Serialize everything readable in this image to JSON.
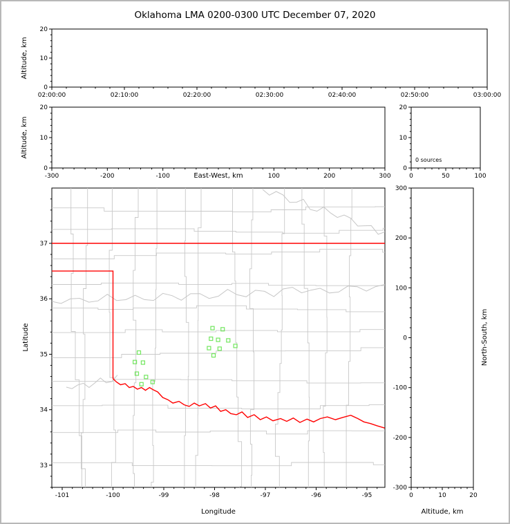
{
  "title": "Oklahoma LMA 0200-0300 UTC December 07, 2020",
  "panels": {
    "time_height": {
      "ylabel": "Altitude, km",
      "yticks": [
        "20",
        "10",
        "0"
      ],
      "xticks": [
        "02:00:00",
        "02:10:00",
        "02:20:00",
        "02:30:00",
        "02:40:00",
        "02:50:00",
        "03:00:00"
      ]
    },
    "ew_height": {
      "ylabel": "Altitude, km",
      "xlabel": "East-West, km",
      "yticks": [
        "20",
        "10",
        "0"
      ],
      "xticks": [
        "-300",
        "-200",
        "-100",
        "100",
        "200",
        "300"
      ]
    },
    "histogram": {
      "annotation": "0 sources",
      "yticks": [
        "20",
        "10",
        "0"
      ],
      "xticks": [
        "0",
        "50",
        "100"
      ]
    },
    "map": {
      "ylabel": "Latitude",
      "xlabel": "Longitude",
      "yticks": [
        "37",
        "36",
        "35",
        "34",
        "33"
      ],
      "xticks": [
        "-101",
        "-100",
        "-99",
        "-98",
        "-97",
        "-96",
        "-95"
      ]
    },
    "ns_height": {
      "ylabel": "North-South, km",
      "xlabel": "Altitude, km",
      "yticks": [
        "300",
        "200",
        "100",
        "0",
        "-100",
        "-200",
        "-300"
      ],
      "xticks": [
        "0",
        "10",
        "20"
      ]
    }
  },
  "chart_data": {
    "type": "scatter",
    "title": "Oklahoma LMA 0200-0300 UTC December 07, 2020",
    "source_count": 0,
    "panels": [
      {
        "id": "altitude_vs_time",
        "type": "scatter",
        "x_range": [
          "02:00:00",
          "03:00:00"
        ],
        "y_axis": "Altitude, km",
        "y_range": [
          0,
          20
        ],
        "points": []
      },
      {
        "id": "altitude_vs_east_west",
        "type": "scatter",
        "x_axis": "East-West, km",
        "x_range": [
          -300,
          300
        ],
        "y_axis": "Altitude, km",
        "y_range": [
          0,
          20
        ],
        "points": []
      },
      {
        "id": "source_count_histogram",
        "type": "histogram",
        "x_range": [
          0,
          100
        ],
        "y_range": [
          0,
          20
        ],
        "annotation": "0 sources",
        "points": []
      },
      {
        "id": "plan_view_map",
        "type": "map-scatter",
        "x_axis": "Longitude",
        "x_range": [
          -101.2,
          -94.65
        ],
        "y_axis": "Latitude",
        "y_range": [
          32.6,
          38.0
        ]
      },
      {
        "id": "north_south_vs_altitude",
        "type": "scatter",
        "x_axis": "Altitude, km",
        "x_range": [
          0,
          20
        ],
        "y_axis": "North-South, km",
        "y_range": [
          -300,
          300
        ],
        "points": []
      }
    ],
    "county_lines_color": "#c8c8c8",
    "stations": {
      "marker": "open-square",
      "color": "#72e65e",
      "points": [
        [
          -99.49,
          35.03
        ],
        [
          -99.57,
          34.86
        ],
        [
          -99.41,
          34.85
        ],
        [
          -99.53,
          34.65
        ],
        [
          -99.35,
          34.59
        ],
        [
          -99.22,
          34.5
        ],
        [
          -99.44,
          34.46
        ],
        [
          -98.04,
          35.47
        ],
        [
          -97.84,
          35.45
        ],
        [
          -98.07,
          35.28
        ],
        [
          -97.93,
          35.26
        ],
        [
          -97.73,
          35.25
        ],
        [
          -98.11,
          35.11
        ],
        [
          -97.9,
          35.1
        ],
        [
          -97.59,
          35.15
        ],
        [
          -98.02,
          34.98
        ]
      ]
    },
    "state_boundary": {
      "color": "#ff0000",
      "segments": [
        {
          "name": "kansas-border",
          "points": [
            [
              -101.21,
              37.0
            ],
            [
              -94.64,
              37.0
            ]
          ]
        },
        {
          "name": "missouri-border",
          "points": [
            [
              -94.63,
              37.0
            ],
            [
              -94.63,
              36.5
            ]
          ]
        },
        {
          "name": "panhandle-border",
          "points": [
            [
              -101.21,
              36.5
            ],
            [
              -100.0,
              36.5
            ],
            [
              -100.0,
              34.56
            ]
          ]
        },
        {
          "name": "red-river-border",
          "points": [
            [
              -100.0,
              34.56
            ],
            [
              -99.93,
              34.5
            ],
            [
              -99.85,
              34.45
            ],
            [
              -99.76,
              34.47
            ],
            [
              -99.68,
              34.4
            ],
            [
              -99.6,
              34.42
            ],
            [
              -99.52,
              34.37
            ],
            [
              -99.44,
              34.4
            ],
            [
              -99.36,
              34.35
            ],
            [
              -99.28,
              34.4
            ],
            [
              -99.21,
              34.36
            ],
            [
              -99.12,
              34.32
            ],
            [
              -99.02,
              34.22
            ],
            [
              -98.92,
              34.18
            ],
            [
              -98.82,
              34.12
            ],
            [
              -98.7,
              34.15
            ],
            [
              -98.6,
              34.09
            ],
            [
              -98.5,
              34.06
            ],
            [
              -98.4,
              34.12
            ],
            [
              -98.3,
              34.07
            ],
            [
              -98.18,
              34.11
            ],
            [
              -98.08,
              34.03
            ],
            [
              -97.98,
              34.07
            ],
            [
              -97.88,
              33.97
            ],
            [
              -97.78,
              34.0
            ],
            [
              -97.68,
              33.93
            ],
            [
              -97.57,
              33.91
            ],
            [
              -97.46,
              33.96
            ],
            [
              -97.35,
              33.86
            ],
            [
              -97.22,
              33.91
            ],
            [
              -97.1,
              33.82
            ],
            [
              -96.98,
              33.87
            ],
            [
              -96.85,
              33.8
            ],
            [
              -96.7,
              33.84
            ],
            [
              -96.58,
              33.79
            ],
            [
              -96.45,
              33.85
            ],
            [
              -96.32,
              33.77
            ],
            [
              -96.18,
              33.83
            ],
            [
              -96.05,
              33.78
            ],
            [
              -95.92,
              33.84
            ],
            [
              -95.78,
              33.87
            ],
            [
              -95.62,
              33.82
            ],
            [
              -95.48,
              33.86
            ],
            [
              -95.32,
              33.9
            ],
            [
              -95.18,
              33.84
            ],
            [
              -95.06,
              33.78
            ],
            [
              -94.93,
              33.75
            ],
            [
              -94.8,
              33.71
            ],
            [
              -94.65,
              33.67
            ]
          ]
        }
      ]
    }
  }
}
